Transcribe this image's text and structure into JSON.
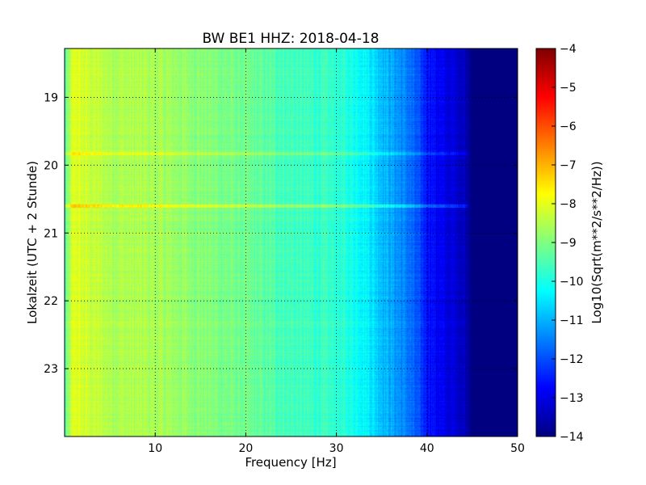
{
  "chart_data": {
    "type": "heatmap",
    "title": "BW BE1 HHZ: 2018-04-18",
    "xlabel": "Frequency [Hz]",
    "ylabel": "Lokalzeit (UTC + 2 Stunde)",
    "xlim": [
      0,
      50
    ],
    "ylim": [
      18.28,
      24.0
    ],
    "x_ticks": [
      10,
      20,
      30,
      40,
      50
    ],
    "y_ticks": [
      19,
      20,
      21,
      22,
      23
    ],
    "grid": true,
    "colormap": "jet",
    "colorbar": {
      "label": "Log10(Sqrt(m**2/s**2/Hz))",
      "min": -14,
      "max": -4,
      "ticks": [
        -4,
        -5,
        -6,
        -7,
        -8,
        -9,
        -10,
        -11,
        -12,
        -13,
        -14
      ]
    },
    "spectrum_profile": {
      "frequency_hz": [
        0,
        1,
        2,
        5,
        10,
        15,
        20,
        25,
        30,
        33,
        35,
        38,
        40,
        42,
        44,
        45,
        46,
        50
      ],
      "log_amplitude": [
        -9.5,
        -8.0,
        -8.2,
        -8.5,
        -8.6,
        -8.9,
        -9.2,
        -9.6,
        -9.8,
        -10.2,
        -10.8,
        -11.6,
        -12.5,
        -13.0,
        -13.3,
        -14,
        -14,
        -14
      ]
    },
    "highlighted_lines": [
      {
        "time": 20.6,
        "note": "bright horizontal band"
      },
      {
        "time": 19.83,
        "note": "faint horizontal band"
      }
    ]
  }
}
